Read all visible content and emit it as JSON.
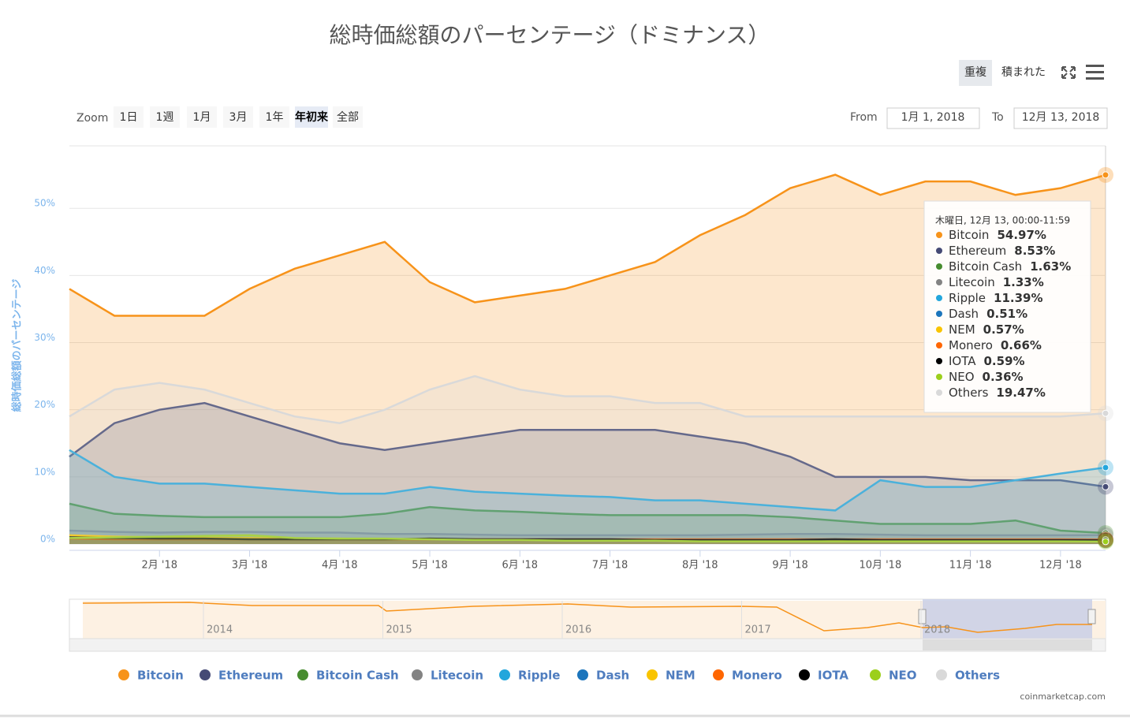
{
  "chart_data": {
    "type": "area",
    "title": "総時価総額のパーセンテージ（ドミナンス）",
    "y_label": "総時価総額のパーセンテージ",
    "categories": [
      null,
      null,
      "2月 '18",
      null,
      "3月 '18",
      null,
      "4月 '18",
      null,
      "5月 '18",
      null,
      "6月 '18",
      null,
      "7月 '18",
      null,
      "8月 '18",
      null,
      "9月 '18",
      null,
      "10月 '18",
      null,
      "11月 '18",
      null,
      "12月 '18",
      null
    ],
    "ylim": [
      0,
      59.3
    ],
    "yticks": [
      {
        "value": 0,
        "label": "0%"
      },
      {
        "value": 10,
        "label": "10%"
      },
      {
        "value": 20,
        "label": "20%"
      },
      {
        "value": 30,
        "label": "30%"
      },
      {
        "value": 40,
        "label": "40%"
      },
      {
        "value": 50,
        "label": "50%"
      }
    ],
    "grid": true,
    "series": [
      {
        "name": "Bitcoin",
        "color": "#f7931a",
        "values": [
          38,
          34,
          34,
          34,
          38,
          41,
          43,
          45,
          39,
          36,
          37,
          38,
          40,
          42,
          46,
          49,
          53,
          55,
          52,
          54,
          54,
          52,
          53,
          54.97
        ],
        "value_labels": [
          null,
          null,
          null,
          null,
          null,
          null,
          null,
          null,
          null,
          null,
          null,
          null,
          null,
          null,
          null,
          null,
          null,
          null,
          null,
          null,
          null,
          null,
          null,
          "54.97%"
        ]
      },
      {
        "name": "Ethereum",
        "color": "#454a75",
        "values": [
          13,
          18,
          20,
          21,
          19,
          17,
          15,
          14,
          15,
          16,
          17,
          17,
          17,
          17,
          16,
          15,
          13,
          10,
          10,
          10,
          9.5,
          9.5,
          9.5,
          8.53
        ],
        "value_labels": [
          null,
          null,
          null,
          null,
          null,
          null,
          null,
          null,
          null,
          null,
          null,
          null,
          null,
          null,
          null,
          null,
          null,
          null,
          null,
          null,
          null,
          null,
          null,
          "8.53%"
        ]
      },
      {
        "name": "Bitcoin Cash",
        "color": "#478c2f",
        "values": [
          6,
          4.5,
          4.2,
          4,
          4,
          4,
          4,
          4.5,
          5.5,
          5,
          4.8,
          4.5,
          4.3,
          4.3,
          4.3,
          4.3,
          4,
          3.5,
          3,
          3,
          3,
          3.5,
          2,
          1.63
        ],
        "value_labels": [
          null,
          null,
          null,
          null,
          null,
          null,
          null,
          null,
          null,
          null,
          null,
          null,
          null,
          null,
          null,
          null,
          null,
          null,
          null,
          null,
          null,
          null,
          null,
          "1.63%"
        ]
      },
      {
        "name": "Litecoin",
        "color": "#838383",
        "values": [
          2,
          1.8,
          1.7,
          1.8,
          1.8,
          1.7,
          1.7,
          1.5,
          1.5,
          1.4,
          1.3,
          1.3,
          1.3,
          1.3,
          1.3,
          1.4,
          1.5,
          1.5,
          1.4,
          1.3,
          1.3,
          1.3,
          1.3,
          1.33
        ],
        "value_labels": [
          null,
          null,
          null,
          null,
          null,
          null,
          null,
          null,
          null,
          null,
          null,
          null,
          null,
          null,
          null,
          null,
          null,
          null,
          null,
          null,
          null,
          null,
          null,
          "1.33%"
        ]
      },
      {
        "name": "Ripple",
        "color": "#23a6dc",
        "values": [
          14,
          10,
          9,
          9,
          8.5,
          8,
          7.5,
          7.5,
          8.5,
          7.8,
          7.5,
          7.2,
          7,
          6.5,
          6.5,
          6,
          5.5,
          5,
          9.5,
          8.5,
          8.5,
          9.5,
          10.5,
          11.39
        ],
        "value_labels": [
          null,
          null,
          null,
          null,
          null,
          null,
          null,
          null,
          null,
          null,
          null,
          null,
          null,
          null,
          null,
          null,
          null,
          null,
          null,
          null,
          null,
          null,
          null,
          "11.39%"
        ]
      },
      {
        "name": "Dash",
        "color": "#1c75bc",
        "values": [
          0.9,
          0.8,
          0.8,
          0.8,
          0.7,
          0.7,
          0.7,
          0.7,
          0.7,
          0.6,
          0.6,
          0.6,
          0.6,
          0.6,
          0.6,
          0.6,
          0.6,
          0.6,
          0.6,
          0.5,
          0.5,
          0.5,
          0.5,
          0.51
        ],
        "value_labels": [
          null,
          null,
          null,
          null,
          null,
          null,
          null,
          null,
          null,
          null,
          null,
          null,
          null,
          null,
          null,
          null,
          null,
          null,
          null,
          null,
          null,
          null,
          null,
          "0.51%"
        ]
      },
      {
        "name": "NEM",
        "color": "#f9c400",
        "values": [
          1.3,
          1.1,
          1,
          0.9,
          0.9,
          0.8,
          0.8,
          0.7,
          0.7,
          0.7,
          0.6,
          0.6,
          0.6,
          0.6,
          0.6,
          0.6,
          0.6,
          0.6,
          0.6,
          0.6,
          0.6,
          0.6,
          0.6,
          0.57
        ],
        "value_labels": [
          null,
          null,
          null,
          null,
          null,
          null,
          null,
          null,
          null,
          null,
          null,
          null,
          null,
          null,
          null,
          null,
          null,
          null,
          null,
          null,
          null,
          null,
          null,
          "0.57%"
        ]
      },
      {
        "name": "Monero",
        "color": "#ff6600",
        "values": [
          0.8,
          0.7,
          0.7,
          0.7,
          0.7,
          0.7,
          0.7,
          0.7,
          0.7,
          0.7,
          0.7,
          0.7,
          0.7,
          0.7,
          0.7,
          0.7,
          0.7,
          0.7,
          0.7,
          0.7,
          0.7,
          0.7,
          0.7,
          0.66
        ],
        "value_labels": [
          null,
          null,
          null,
          null,
          null,
          null,
          null,
          null,
          null,
          null,
          null,
          null,
          null,
          null,
          null,
          null,
          null,
          null,
          null,
          null,
          null,
          null,
          null,
          "0.66%"
        ]
      },
      {
        "name": "IOTA",
        "color": "#000000",
        "values": [
          1,
          0.9,
          0.8,
          0.8,
          0.7,
          0.7,
          0.7,
          0.7,
          0.8,
          0.7,
          0.7,
          0.7,
          0.7,
          0.6,
          0.6,
          0.6,
          0.6,
          0.7,
          0.6,
          0.6,
          0.6,
          0.6,
          0.6,
          0.59
        ],
        "value_labels": [
          null,
          null,
          null,
          null,
          null,
          null,
          null,
          null,
          null,
          null,
          null,
          null,
          null,
          null,
          null,
          null,
          null,
          null,
          null,
          null,
          null,
          null,
          null,
          "0.59%"
        ]
      },
      {
        "name": "NEO",
        "color": "#9ccf1c",
        "values": [
          0.9,
          1,
          1.1,
          1.2,
          1.3,
          0.9,
          0.8,
          0.8,
          0.7,
          0.6,
          0.6,
          0.5,
          0.5,
          0.5,
          0.4,
          0.4,
          0.4,
          0.4,
          0.4,
          0.4,
          0.4,
          0.4,
          0.4,
          0.36
        ],
        "value_labels": [
          null,
          null,
          null,
          null,
          null,
          null,
          null,
          null,
          null,
          null,
          null,
          null,
          null,
          null,
          null,
          null,
          null,
          null,
          null,
          null,
          null,
          null,
          null,
          "0.36%"
        ]
      },
      {
        "name": "Others",
        "color": "#d9d9d9",
        "values": [
          19,
          23,
          24,
          23,
          21,
          19,
          18,
          20,
          23,
          25,
          23,
          22,
          22,
          21,
          21,
          19,
          19,
          19,
          19,
          19,
          19,
          19,
          19,
          19.47
        ],
        "value_labels": [
          null,
          null,
          null,
          null,
          null,
          null,
          null,
          null,
          null,
          null,
          null,
          null,
          null,
          null,
          null,
          null,
          null,
          null,
          null,
          null,
          null,
          null,
          null,
          "19.47%"
        ]
      }
    ],
    "tooltip": {
      "title": "木曜日, 12月 13, 00:00-11:59"
    },
    "credit": "coinmarketcap.com"
  },
  "toolbar": {
    "overlap": "重複",
    "stacked": "積まれた"
  },
  "range_selector": {
    "zoom": "Zoom",
    "buttons": [
      "1日",
      "1週",
      "1月",
      "3月",
      "1年",
      "年初来",
      "全部"
    ],
    "selected": 5,
    "from_label": "From",
    "from": "1月 1, 2018",
    "to_label": "To",
    "to": "12月 13, 2018"
  },
  "navigator": {
    "years": [
      "2014",
      "2015",
      "2016",
      "2017",
      "2018"
    ]
  }
}
